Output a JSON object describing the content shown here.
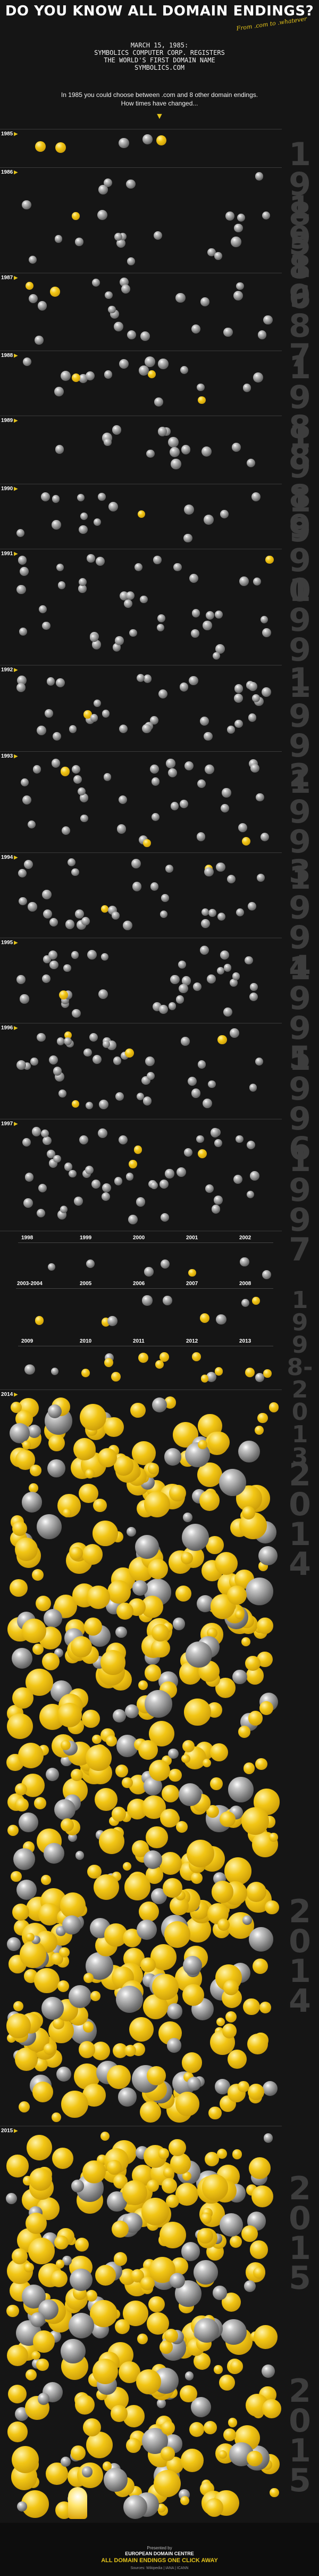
{
  "header": {
    "title": "DO YOU KNOW ALL DOMAIN ENDINGS?",
    "tagline": "From .com to .whatever"
  },
  "intro": {
    "line1": "MARCH 15, 1985:",
    "line2": "SYMBOLICS COMPUTER CORP. REGISTERS",
    "line3": "THE WORLD'S FIRST DOMAIN NAME",
    "line4": "SYMBOLICS.COM",
    "line5": "In 1985 you could choose between .com and 8 other domain endings.",
    "line6": "How times have changed..."
  },
  "sections": [
    {
      "year": "1985",
      "big": "1985"
    },
    {
      "year": "1986",
      "big": "1986"
    },
    {
      "year": "1987",
      "big": "1987"
    },
    {
      "year": "1988",
      "big": "1988"
    },
    {
      "year": "1989",
      "big": "1989"
    },
    {
      "year": "1990",
      "big": "1990"
    },
    {
      "year": "1991",
      "big": "1991"
    },
    {
      "year": "1992",
      "big": "1992"
    },
    {
      "year": "1993",
      "big": "1993"
    },
    {
      "year": "1994",
      "big": "1994"
    },
    {
      "year": "1995",
      "big": "1995"
    },
    {
      "year": "1996",
      "big": "1996"
    },
    {
      "year": "1997",
      "big": "1997"
    },
    {
      "year": "",
      "big": "1998-2013"
    },
    {
      "year": "2014",
      "big": "2014"
    },
    {
      "year": "2015",
      "big": "2015"
    }
  ],
  "grid_years": {
    "row1": [
      "1998",
      "1999",
      "2000",
      "2001",
      "2002"
    ],
    "row2": [
      "2003-2004",
      "2005",
      "2006",
      "2007",
      "2008"
    ],
    "row3": [
      "2009",
      "2010",
      "2011",
      "2012",
      "2013"
    ]
  },
  "footer": {
    "presented": "Presented by",
    "org": "EUROPEAN DOMAIN CENTRE",
    "cta": "ALL DOMAIN ENDINGS ONE CLICK AWAY",
    "sources": "Sources: Wikipedia | IANA | ICANN"
  },
  "colors": {
    "background": "#151515",
    "accent": "#e4c31a",
    "divider": "#3a3a3a",
    "big_year": "#3d3d3d"
  },
  "icons": {
    "flag_ball": "country-code-domain-icon",
    "gold_ball": "generic-domain-icon",
    "arrow": "arrow-down-icon"
  }
}
